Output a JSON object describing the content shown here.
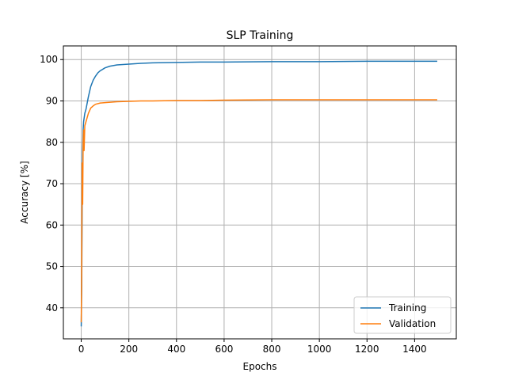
{
  "chart_data": {
    "type": "line",
    "title": "SLP Training",
    "xlabel": "Epochs",
    "ylabel": "Accuracy [%]",
    "xlim": [
      -75,
      1575
    ],
    "ylim": [
      32.5,
      103.3
    ],
    "xticks": [
      0,
      200,
      400,
      600,
      800,
      1000,
      1200,
      1400
    ],
    "yticks": [
      40,
      50,
      60,
      70,
      80,
      90,
      100
    ],
    "grid": true,
    "legend": "bottom-right",
    "series": [
      {
        "name": "Training",
        "color": "#1f77b4",
        "x": [
          0,
          2,
          4,
          6,
          8,
          10,
          15,
          20,
          30,
          40,
          50,
          60,
          70,
          80,
          100,
          120,
          150,
          200,
          250,
          300,
          400,
          500,
          600,
          800,
          1000,
          1200,
          1400,
          1495
        ],
        "y": [
          35.5,
          45,
          65,
          78,
          83,
          85,
          87,
          88,
          91,
          93.5,
          95,
          96,
          96.8,
          97.3,
          98,
          98.4,
          98.7,
          98.9,
          99.1,
          99.2,
          99.3,
          99.4,
          99.4,
          99.5,
          99.5,
          99.6,
          99.6,
          99.6
        ]
      },
      {
        "name": "Validation",
        "color": "#ff7f0e",
        "x": [
          0,
          2,
          4,
          6,
          8,
          10,
          12,
          15,
          20,
          25,
          30,
          40,
          50,
          60,
          80,
          100,
          150,
          200,
          250,
          300,
          400,
          500,
          600,
          800,
          1000,
          1200,
          1400,
          1495
        ],
        "y": [
          36.5,
          50,
          75,
          65,
          80,
          83,
          78,
          84,
          85,
          86,
          87,
          88.3,
          88.8,
          89.2,
          89.5,
          89.6,
          89.8,
          89.9,
          90,
          90,
          90.1,
          90.1,
          90.2,
          90.3,
          90.3,
          90.3,
          90.3,
          90.3
        ]
      }
    ]
  }
}
